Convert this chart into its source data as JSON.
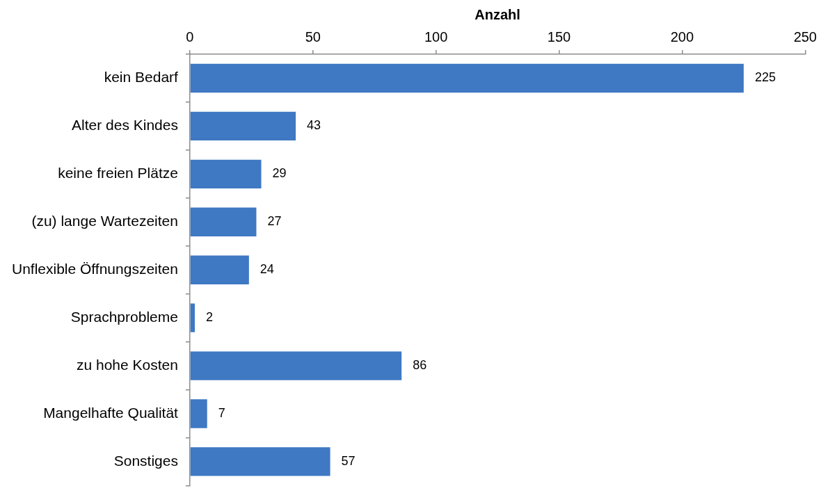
{
  "chart_data": {
    "type": "bar",
    "orientation": "horizontal",
    "xlabel": "Anzahl",
    "categories": [
      "kein Bedarf",
      "Alter des Kindes",
      "keine freien Plätze",
      "(zu) lange Wartezeiten",
      "Unflexible Öffnungszeiten",
      "Sprachprobleme",
      "zu hohe Kosten",
      "Mangelhafte Qualität",
      "Sonstiges"
    ],
    "values": [
      225,
      43,
      29,
      27,
      24,
      2,
      86,
      7,
      57
    ],
    "color": "#3f78c3",
    "xlim": [
      0,
      250
    ],
    "xticks": [
      0,
      50,
      100,
      150,
      200,
      250
    ],
    "data_labels": true,
    "grid": false,
    "legend": false
  }
}
